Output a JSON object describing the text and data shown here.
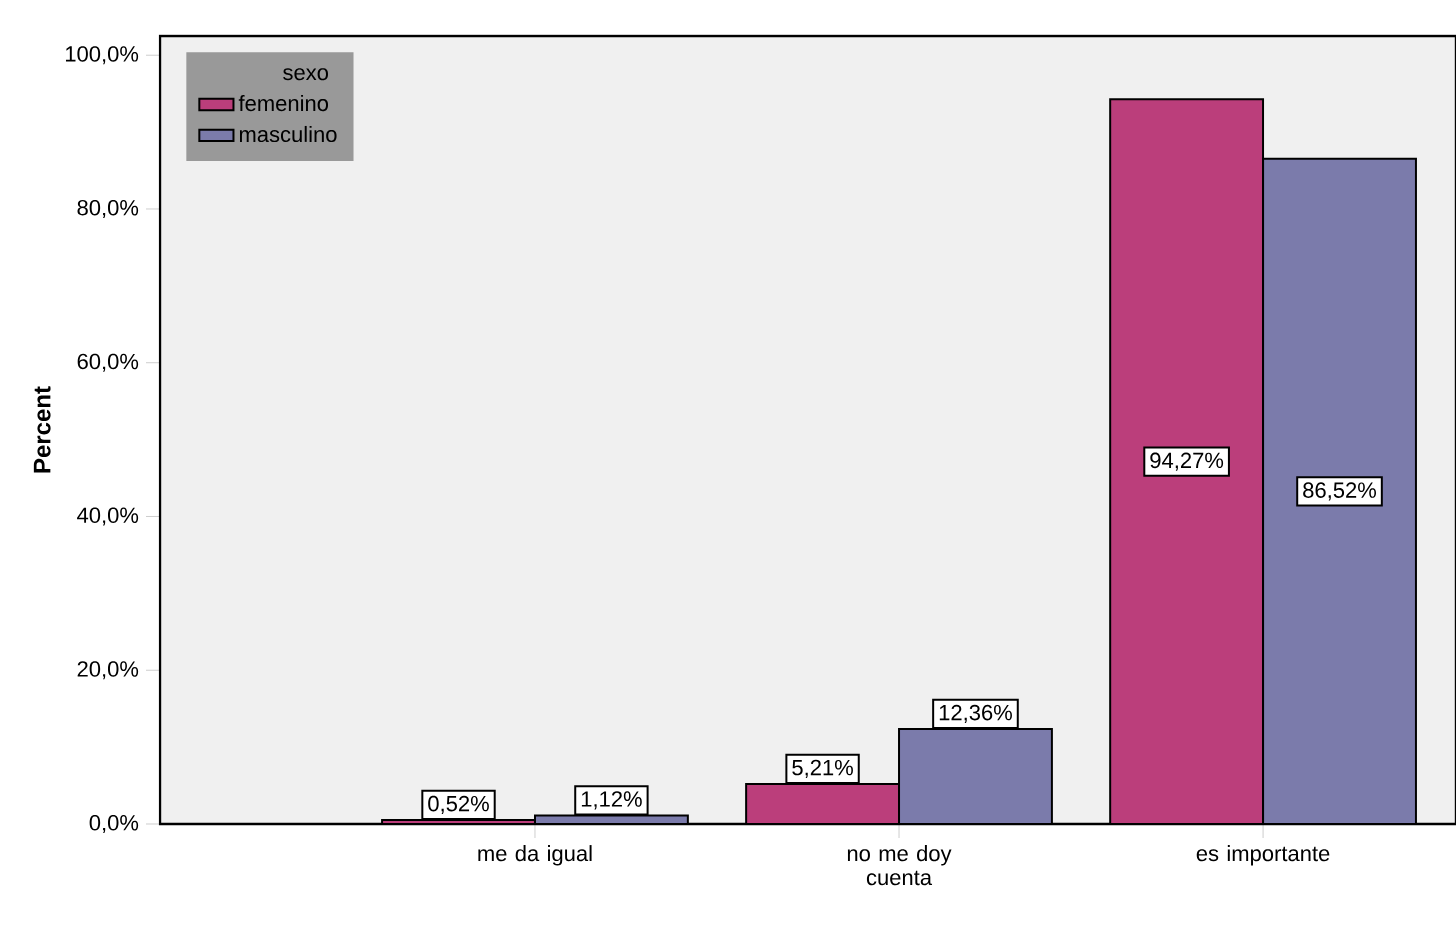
{
  "chart_data": {
    "type": "bar",
    "ylabel": "Percent",
    "legend_title": "sexo",
    "legend": "top left",
    "categories": [
      "me da igual",
      "no me doy cuenta",
      "es importante"
    ],
    "series": [
      {
        "name": "femenino",
        "color": "#bb3e7b",
        "values": [
          0.52,
          5.21,
          94.27
        ],
        "value_labels": [
          "0,52%",
          "5,21%",
          "94,27%"
        ]
      },
      {
        "name": "masculino",
        "color": "#7b7bab",
        "values": [
          1.12,
          12.36,
          86.52
        ],
        "value_labels": [
          "1,12%",
          "12,36%",
          "86,52%"
        ]
      }
    ],
    "ylim": [
      0,
      102.5
    ],
    "yticks": [
      {
        "value": 0,
        "label": "0,0%"
      },
      {
        "value": 20,
        "label": "20,0%"
      },
      {
        "value": 40,
        "label": "40,0%"
      },
      {
        "value": 60,
        "label": "60,0%"
      },
      {
        "value": 80,
        "label": "80,0%"
      },
      {
        "value": 100,
        "label": "100,0%"
      }
    ]
  }
}
